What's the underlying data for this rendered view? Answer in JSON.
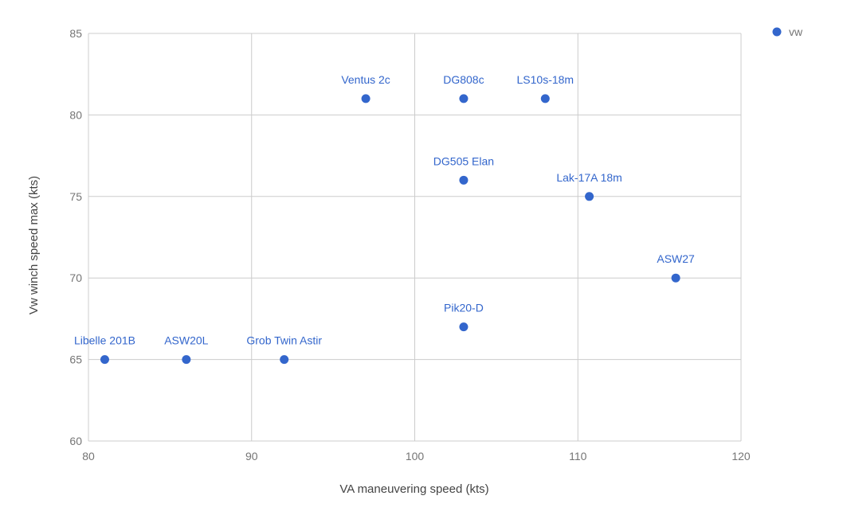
{
  "chart_data": {
    "type": "scatter",
    "title": "",
    "xlabel": "VA maneuvering speed (kts)",
    "ylabel": "Vw winch speed max (kts)",
    "xlim": [
      80,
      120
    ],
    "ylim": [
      60,
      85
    ],
    "x_ticks": [
      "80",
      "90",
      "100",
      "110",
      "120"
    ],
    "y_ticks": [
      "60",
      "65",
      "70",
      "75",
      "80",
      "85"
    ],
    "grid": true,
    "legend_position": "top-right",
    "color": "#3366cc",
    "series": [
      {
        "name": "vw",
        "points": [
          {
            "label": "Libelle 201B",
            "x": 81,
            "y": 65
          },
          {
            "label": "ASW20L",
            "x": 86,
            "y": 65
          },
          {
            "label": "Grob Twin Astir",
            "x": 92,
            "y": 65
          },
          {
            "label": "Ventus 2c",
            "x": 97,
            "y": 81
          },
          {
            "label": "DG808c",
            "x": 103,
            "y": 81
          },
          {
            "label": "LS10s-18m",
            "x": 108,
            "y": 81
          },
          {
            "label": "DG505 Elan",
            "x": 103,
            "y": 76
          },
          {
            "label": "Lak-17A 18m",
            "x": 110.7,
            "y": 75
          },
          {
            "label": "ASW27",
            "x": 116,
            "y": 70
          },
          {
            "label": "Pik20-D",
            "x": 103,
            "y": 67
          }
        ]
      }
    ]
  }
}
